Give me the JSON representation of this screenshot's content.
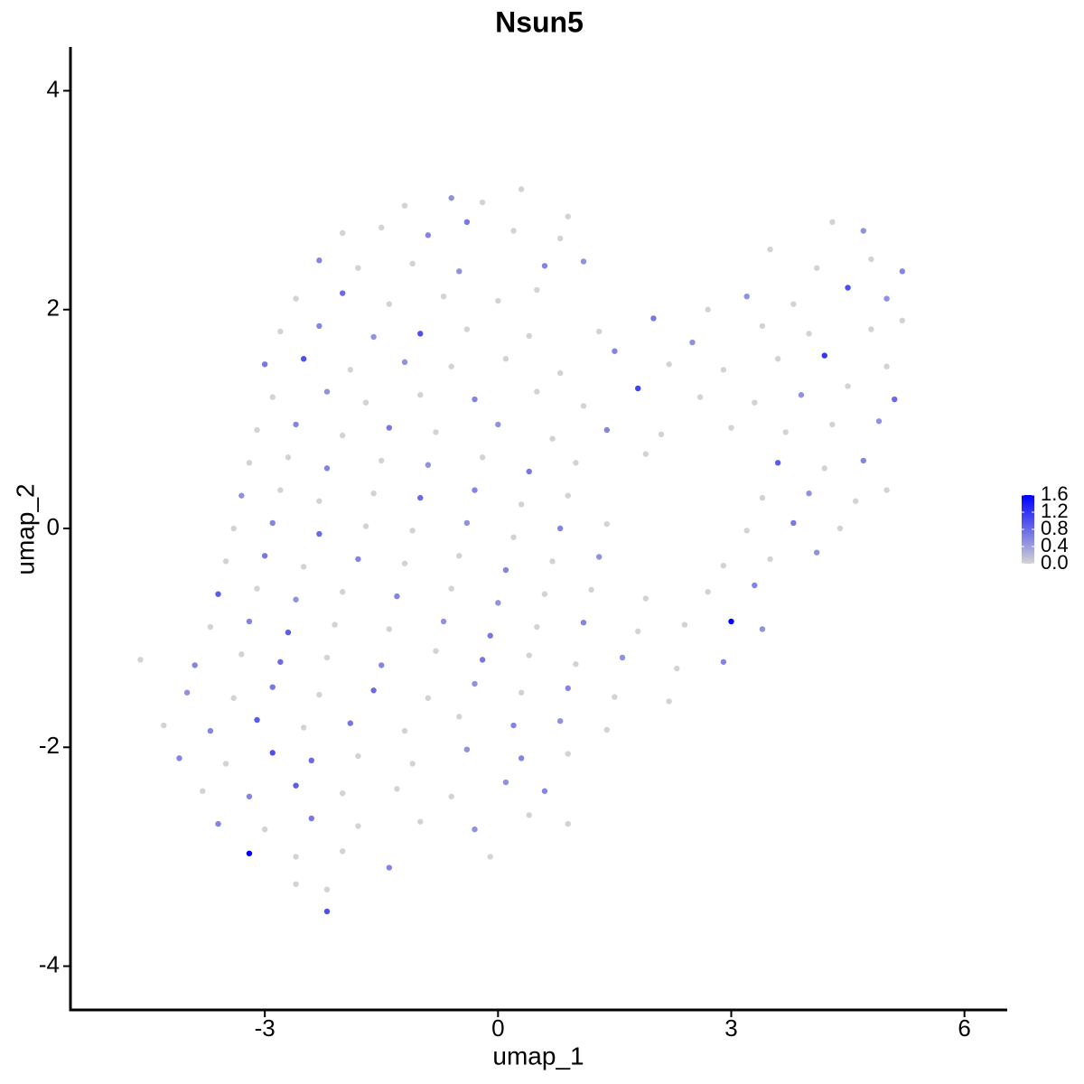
{
  "chart_data": {
    "type": "scatter",
    "title": "Nsun5",
    "x_label": "umap_1",
    "y_label": "umap_2",
    "xlim": [
      -5.5,
      6.55
    ],
    "ylim": [
      -4.4,
      4.4
    ],
    "xticks": [
      -3,
      0,
      3,
      6
    ],
    "yticks": [
      -4,
      -2,
      0,
      2,
      4
    ],
    "color_low": "#d3d3d3",
    "color_high": "#0000ff",
    "colorbar_lim": [
      0,
      1.6
    ],
    "colorbar_ticks": [
      {
        "value": 0,
        "label": "0.0"
      },
      0.4,
      0.8,
      1.2,
      1.6
    ],
    "x": [
      -1.2,
      -0.6,
      -0.2,
      0.3,
      0.9,
      -2.0,
      -1.5,
      -0.9,
      -0.4,
      0.2,
      0.8,
      4.3,
      4.7,
      -2.3,
      -1.8,
      -1.1,
      -0.5,
      0.6,
      1.1,
      3.5,
      4.1,
      4.8,
      5.2,
      -2.6,
      -2.0,
      -1.4,
      -0.7,
      0.0,
      0.5,
      2.7,
      3.2,
      3.8,
      4.5,
      5.0,
      -2.8,
      -2.3,
      -1.6,
      -1.0,
      -0.4,
      0.4,
      1.3,
      2.0,
      2.5,
      3.4,
      4.0,
      4.8,
      5.2,
      -3.0,
      -2.5,
      -1.9,
      -1.2,
      -0.6,
      0.1,
      0.8,
      1.5,
      2.2,
      2.9,
      3.6,
      4.2,
      5.0,
      -2.9,
      -2.2,
      -1.7,
      -1.0,
      -0.3,
      0.5,
      1.1,
      1.8,
      2.6,
      3.3,
      3.9,
      4.5,
      5.1,
      -3.1,
      -2.6,
      -2.0,
      -1.4,
      -0.8,
      0.0,
      0.7,
      1.4,
      2.1,
      3.0,
      3.7,
      4.3,
      4.9,
      -3.2,
      -2.7,
      -2.2,
      -1.5,
      -0.9,
      -0.2,
      0.4,
      1.0,
      1.9,
      3.6,
      4.2,
      4.7,
      -3.3,
      -2.8,
      -2.3,
      -1.6,
      -1.0,
      -0.3,
      0.3,
      0.9,
      3.4,
      4.0,
      4.6,
      5.0,
      -3.4,
      -2.9,
      -2.3,
      -1.7,
      -1.1,
      -0.4,
      0.2,
      0.8,
      1.4,
      3.2,
      3.8,
      4.4,
      -3.5,
      -3.0,
      -2.5,
      -1.8,
      -1.2,
      -0.5,
      0.1,
      0.7,
      1.3,
      2.9,
      3.5,
      4.1,
      -3.6,
      -3.1,
      -2.6,
      -2.0,
      -1.3,
      -0.6,
      0.0,
      0.6,
      1.2,
      1.9,
      2.7,
      3.3,
      -3.7,
      -3.2,
      -2.7,
      -2.1,
      -1.4,
      -0.7,
      -0.1,
      0.5,
      1.1,
      1.8,
      2.4,
      3.0,
      3.4,
      -4.6,
      -3.9,
      -3.3,
      -2.8,
      -2.2,
      -1.5,
      -0.8,
      -0.2,
      0.4,
      1.0,
      1.6,
      2.3,
      2.9,
      -4.0,
      -3.4,
      -2.9,
      -2.3,
      -1.6,
      -0.9,
      -0.3,
      0.3,
      0.9,
      1.5,
      2.2,
      -4.3,
      -3.7,
      -3.1,
      -2.5,
      -1.9,
      -1.2,
      -0.5,
      0.2,
      0.8,
      1.4,
      -4.1,
      -3.5,
      -2.9,
      -2.4,
      -1.8,
      -1.1,
      -0.4,
      0.3,
      0.9,
      -3.8,
      -3.2,
      -2.6,
      -2.0,
      -1.3,
      -0.6,
      0.1,
      0.6,
      -3.6,
      -3.0,
      -2.4,
      -1.8,
      -1.0,
      -0.3,
      0.4,
      0.9,
      -3.2,
      -2.6,
      -2.0,
      -1.4,
      -0.1,
      -2.6,
      -2.2,
      -2.2
    ],
    "y": [
      2.95,
      3.02,
      2.98,
      3.1,
      2.85,
      2.7,
      2.75,
      2.68,
      2.8,
      2.72,
      2.65,
      2.8,
      2.72,
      2.45,
      2.38,
      2.42,
      2.35,
      2.4,
      2.44,
      2.55,
      2.38,
      2.46,
      2.35,
      2.1,
      2.15,
      2.05,
      2.12,
      2.08,
      2.18,
      2.0,
      2.12,
      2.05,
      2.2,
      2.1,
      1.8,
      1.85,
      1.75,
      1.78,
      1.82,
      1.76,
      1.8,
      1.92,
      1.7,
      1.85,
      1.78,
      1.82,
      1.9,
      1.5,
      1.55,
      1.45,
      1.52,
      1.48,
      1.55,
      1.42,
      1.62,
      1.5,
      1.45,
      1.55,
      1.58,
      1.48,
      1.2,
      1.25,
      1.15,
      1.22,
      1.18,
      1.25,
      1.12,
      1.28,
      1.2,
      1.15,
      1.22,
      1.3,
      1.18,
      0.9,
      0.95,
      0.85,
      0.92,
      0.88,
      0.95,
      0.82,
      0.9,
      0.86,
      0.92,
      0.88,
      0.95,
      0.98,
      0.6,
      0.65,
      0.55,
      0.62,
      0.58,
      0.65,
      0.52,
      0.6,
      0.68,
      0.6,
      0.55,
      0.62,
      0.3,
      0.35,
      0.25,
      0.32,
      0.28,
      0.35,
      0.22,
      0.3,
      0.28,
      0.32,
      0.25,
      0.35,
      0,
      0.05,
      -0.05,
      0.02,
      -0.02,
      0.05,
      -0.08,
      0,
      0.04,
      -0.02,
      0.05,
      0,
      -0.3,
      -0.25,
      -0.35,
      -0.28,
      -0.32,
      -0.25,
      -0.38,
      -0.3,
      -0.26,
      -0.34,
      -0.28,
      -0.22,
      -0.6,
      -0.55,
      -0.65,
      -0.58,
      -0.62,
      -0.55,
      -0.68,
      -0.6,
      -0.56,
      -0.64,
      -0.58,
      -0.52,
      -0.9,
      -0.85,
      -0.95,
      -0.88,
      -0.92,
      -0.85,
      -0.98,
      -0.9,
      -0.86,
      -0.94,
      -0.88,
      -0.85,
      -0.92,
      -1.2,
      -1.25,
      -1.15,
      -1.22,
      -1.18,
      -1.25,
      -1.12,
      -1.2,
      -1.16,
      -1.24,
      -1.18,
      -1.28,
      -1.22,
      -1.5,
      -1.55,
      -1.45,
      -1.52,
      -1.48,
      -1.55,
      -1.42,
      -1.5,
      -1.46,
      -1.54,
      -1.58,
      -1.8,
      -1.85,
      -1.75,
      -1.82,
      -1.78,
      -1.85,
      -1.72,
      -1.8,
      -1.76,
      -1.84,
      -2.1,
      -2.15,
      -2.05,
      -2.12,
      -2.08,
      -2.15,
      -2.02,
      -2.1,
      -2.06,
      -2.4,
      -2.45,
      -2.35,
      -2.42,
      -2.38,
      -2.45,
      -2.32,
      -2.4,
      -2.7,
      -2.75,
      -2.65,
      -2.72,
      -2.68,
      -2.75,
      -2.62,
      -2.7,
      -2.97,
      -3.0,
      -2.95,
      -3.1,
      -3.0,
      -3.25,
      -3.3,
      -3.5
    ],
    "values": [
      0,
      0.5,
      0,
      0,
      0,
      0,
      0,
      0.6,
      0.7,
      0,
      0,
      0,
      0.5,
      0.6,
      0,
      0,
      0.5,
      0.6,
      0.5,
      0,
      0,
      0,
      0.6,
      0,
      0.8,
      0,
      0,
      0,
      0,
      0,
      0.5,
      0,
      1.0,
      0.5,
      0,
      0.6,
      0.5,
      1.0,
      0,
      0,
      0,
      0.7,
      0.5,
      0,
      0,
      0,
      0,
      0.7,
      1.0,
      0,
      0.5,
      0,
      0,
      0,
      0.6,
      0,
      0,
      0,
      1.2,
      0,
      0,
      0.5,
      0,
      0,
      0.6,
      0,
      0,
      1.1,
      0,
      0,
      0.5,
      0,
      0.8,
      0,
      0.6,
      0,
      0.7,
      0,
      0.5,
      0,
      0.6,
      0,
      0,
      0,
      0,
      0.5,
      0,
      0,
      0.6,
      0,
      0.5,
      0,
      0.7,
      0,
      0,
      0.9,
      0,
      0.6,
      0.5,
      0,
      0,
      0,
      0.8,
      0.6,
      0,
      0,
      0,
      0.5,
      0,
      0,
      0,
      0.6,
      0.8,
      0,
      0,
      0.5,
      0,
      0.6,
      0,
      0,
      0.7,
      0,
      0,
      0.7,
      0,
      0.6,
      0,
      0,
      0.6,
      0,
      0.5,
      0,
      0,
      0.5,
      0.9,
      0,
      0.5,
      0,
      0.6,
      0,
      0.5,
      0,
      0,
      0,
      0,
      0.6,
      0,
      0.6,
      0.9,
      0,
      0,
      0.5,
      0.7,
      0,
      0.6,
      0,
      0,
      1.6,
      0.5,
      0,
      0.6,
      0,
      0.8,
      0,
      0.6,
      0,
      0.7,
      0,
      0,
      0.5,
      0,
      0.6,
      0.5,
      0,
      0.7,
      0,
      0.8,
      0,
      0.5,
      0,
      0.6,
      0,
      0,
      0,
      0.6,
      0.9,
      0,
      0.7,
      0,
      0,
      0.6,
      0.5,
      0,
      0.6,
      0,
      1.0,
      0.8,
      0,
      0,
      0.5,
      0.6,
      0,
      0,
      0.6,
      0.9,
      0,
      0,
      0,
      0.5,
      0.6,
      0.6,
      0,
      0.7,
      0,
      0,
      0.5,
      0,
      0,
      1.6,
      0,
      0,
      0.6,
      0,
      0,
      0,
      1.0
    ]
  }
}
